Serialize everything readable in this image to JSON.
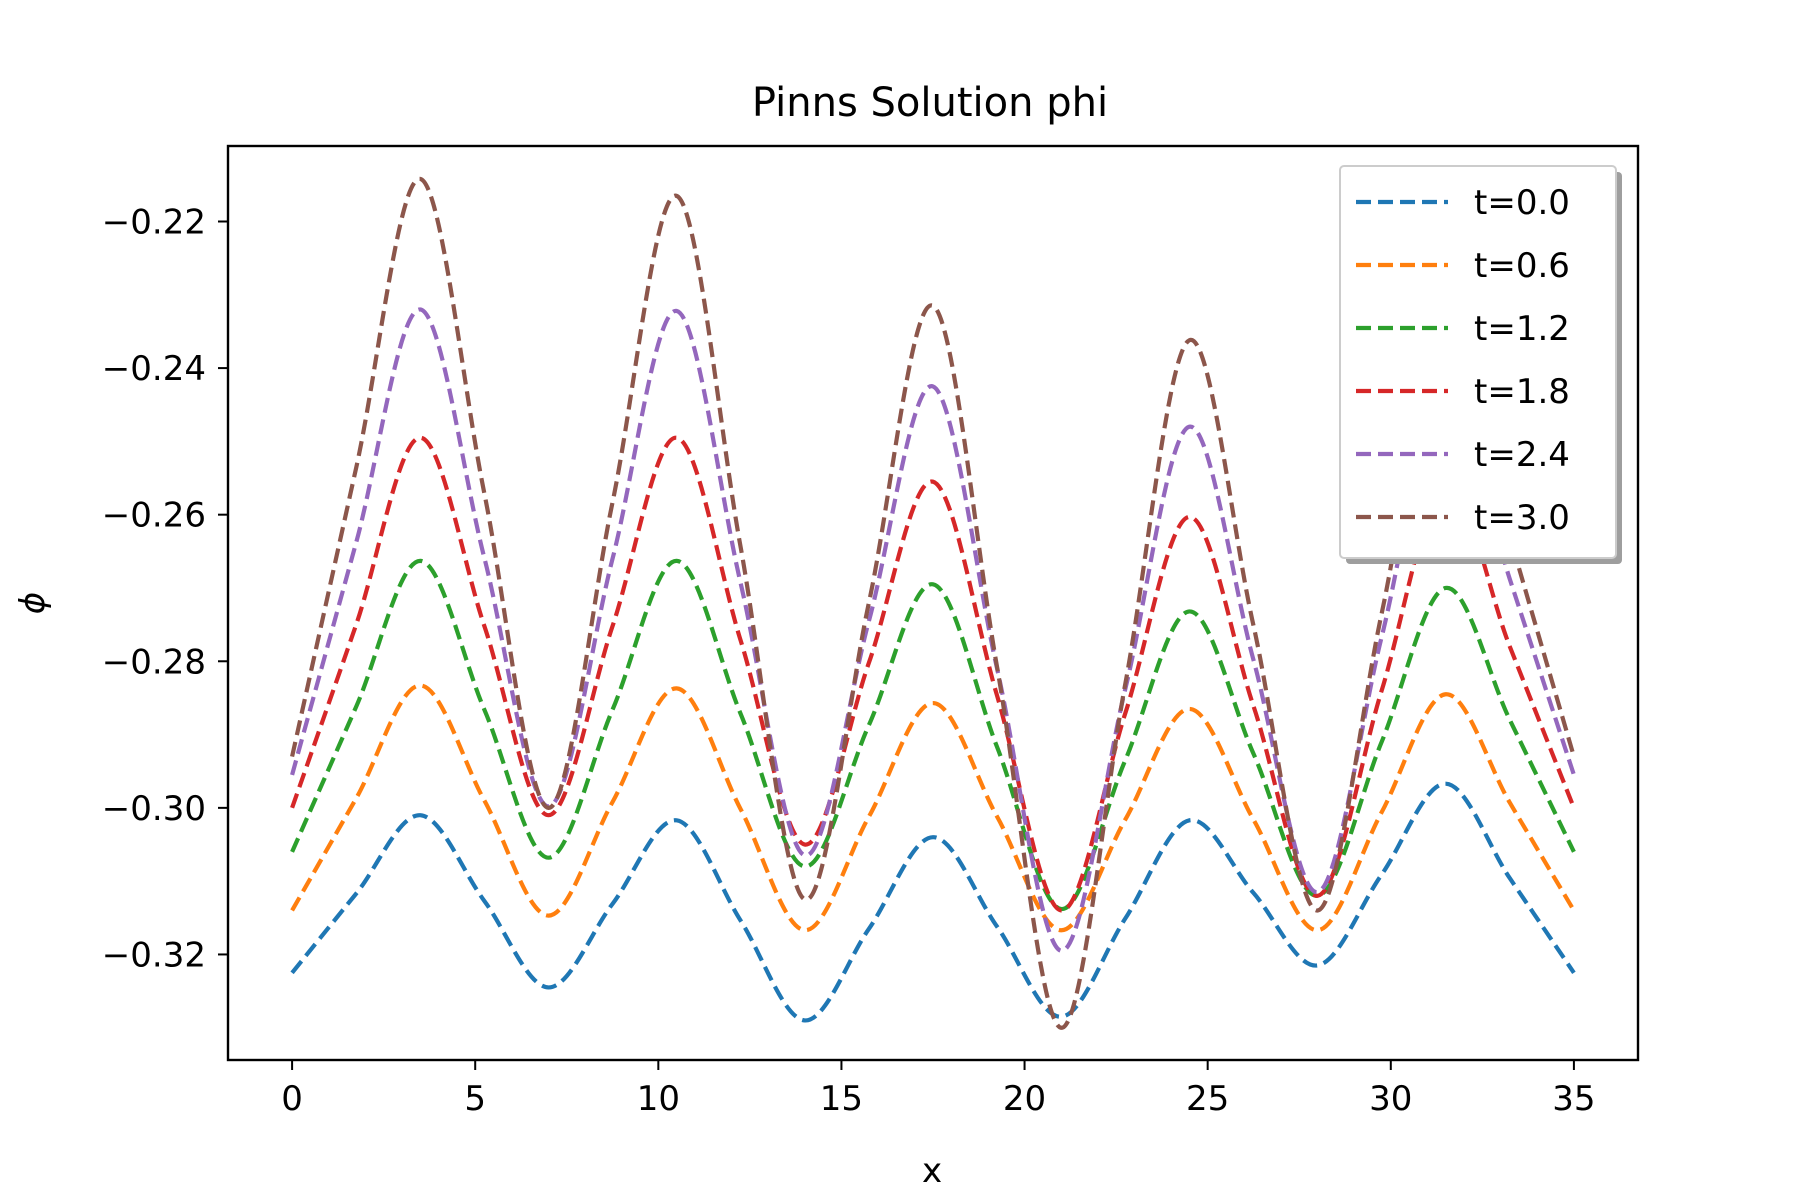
{
  "chart_data": {
    "type": "line",
    "title": "Pinns Solution phi",
    "xlabel": "x",
    "ylabel": "ϕ",
    "xlim": [
      -1.75,
      36.75
    ],
    "ylim": [
      -0.3344,
      -0.2097
    ],
    "xticks": [
      0,
      5,
      10,
      15,
      20,
      25,
      30,
      35
    ],
    "xtick_labels": [
      "0",
      "5",
      "10",
      "15",
      "20",
      "25",
      "30",
      "35"
    ],
    "yticks": [
      -0.32,
      -0.3,
      -0.28,
      -0.26,
      -0.24,
      -0.22
    ],
    "ytick_labels": [
      "−0.32",
      "−0.30",
      "−0.28",
      "−0.26",
      "−0.24",
      "−0.22"
    ],
    "line_style": "dashed",
    "grid": false,
    "legend_position": "top-right",
    "series": [
      {
        "name": "t=0.0",
        "color": "#1f77b4",
        "x": [
          0,
          1.75,
          3.5,
          5.25,
          7,
          8.75,
          10.5,
          12.25,
          14,
          15.75,
          17.5,
          19.25,
          21,
          22.75,
          24.5,
          26.25,
          28,
          29.75,
          31.5,
          33.25,
          35
        ],
        "y": [
          -0.3225,
          -0.3117,
          -0.301,
          -0.3127,
          -0.3245,
          -0.3131,
          -0.3017,
          -0.3154,
          -0.329,
          -0.3165,
          -0.304,
          -0.3162,
          -0.3285,
          -0.3151,
          -0.3017,
          -0.3116,
          -0.3215,
          -0.3091,
          -0.2967,
          -0.3096,
          -0.3225
        ]
      },
      {
        "name": "t=0.6",
        "color": "#ff7f0e",
        "x": [
          0,
          1.75,
          3.5,
          5.25,
          7,
          8.75,
          10.5,
          12.25,
          14,
          15.75,
          17.5,
          19.25,
          21,
          22.75,
          24.5,
          26.25,
          28,
          29.75,
          31.5,
          33.25,
          35
        ],
        "y": [
          -0.314,
          -0.2987,
          -0.2833,
          -0.299,
          -0.3147,
          -0.2992,
          -0.2837,
          -0.3002,
          -0.3167,
          -0.3012,
          -0.2857,
          -0.3012,
          -0.3167,
          -0.3016,
          -0.2865,
          -0.3016,
          -0.3167,
          -0.3006,
          -0.2845,
          -0.2993,
          -0.314
        ]
      },
      {
        "name": "t=1.2",
        "color": "#2ca02c",
        "x": [
          0,
          1.75,
          3.5,
          5.25,
          7,
          8.75,
          10.5,
          12.25,
          14,
          15.75,
          17.5,
          19.25,
          21,
          22.75,
          24.5,
          26.25,
          28,
          29.75,
          31.5,
          33.25,
          35
        ],
        "y": [
          -0.306,
          -0.2862,
          -0.2663,
          -0.2866,
          -0.3068,
          -0.2866,
          -0.2663,
          -0.2872,
          -0.308,
          -0.2887,
          -0.2695,
          -0.2917,
          -0.3138,
          -0.2935,
          -0.2732,
          -0.2926,
          -0.312,
          -0.291,
          -0.27,
          -0.288,
          -0.306
        ]
      },
      {
        "name": "t=1.8",
        "color": "#d62728",
        "x": [
          0,
          1.75,
          3.5,
          5.25,
          7,
          8.75,
          10.5,
          12.25,
          14,
          15.75,
          17.5,
          19.25,
          21,
          22.75,
          24.5,
          26.25,
          28,
          29.75,
          31.5,
          33.25,
          35
        ],
        "y": [
          -0.3,
          -0.275,
          -0.2495,
          -0.2752,
          -0.301,
          -0.2752,
          -0.2495,
          -0.2772,
          -0.305,
          -0.2802,
          -0.2555,
          -0.2847,
          -0.314,
          -0.2871,
          -0.2603,
          -0.2861,
          -0.312,
          -0.284,
          -0.256,
          -0.278,
          -0.3
        ]
      },
      {
        "name": "t=2.4",
        "color": "#9467bd",
        "x": [
          0,
          1.75,
          3.5,
          5.25,
          7,
          8.75,
          10.5,
          12.25,
          14,
          15.75,
          17.5,
          19.25,
          21,
          22.75,
          24.5,
          26.25,
          28,
          29.75,
          31.5,
          33.25,
          35
        ],
        "y": [
          -0.2955,
          -0.2638,
          -0.232,
          -0.2659,
          -0.2998,
          -0.266,
          -0.2322,
          -0.2694,
          -0.3065,
          -0.2745,
          -0.2425,
          -0.281,
          -0.3195,
          -0.2838,
          -0.248,
          -0.2798,
          -0.3115,
          -0.2767,
          -0.242,
          -0.2688,
          -0.2955
        ]
      },
      {
        "name": "t=3.0",
        "color": "#8c564b",
        "x": [
          0,
          1.75,
          3.5,
          5.25,
          7,
          8.75,
          10.5,
          12.25,
          14,
          15.75,
          17.5,
          19.25,
          21,
          22.75,
          24.5,
          26.25,
          28,
          29.75,
          31.5,
          33.25,
          35
        ],
        "y": [
          -0.293,
          -0.2536,
          -0.2142,
          -0.2571,
          -0.3,
          -0.2583,
          -0.2165,
          -0.2645,
          -0.3125,
          -0.272,
          -0.2315,
          -0.2808,
          -0.33,
          -0.2831,
          -0.2362,
          -0.2751,
          -0.314,
          -0.2735,
          -0.233,
          -0.263,
          -0.293
        ]
      }
    ]
  }
}
